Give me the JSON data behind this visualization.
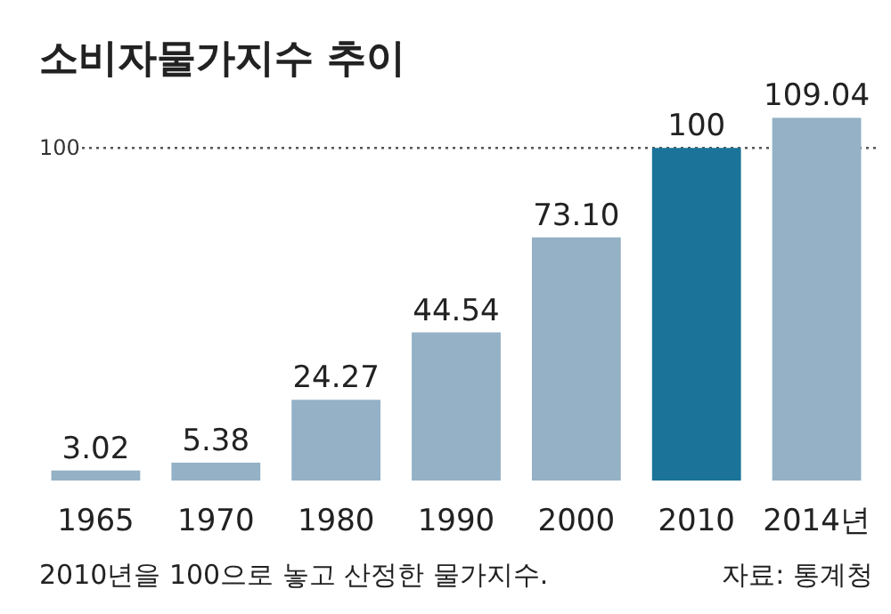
{
  "chart_data": {
    "type": "bar",
    "title": "소비자물가지수 추이",
    "categories": [
      "1965",
      "1970",
      "1980",
      "1990",
      "2000",
      "2010",
      "2014년"
    ],
    "values": [
      3.02,
      5.38,
      24.27,
      44.54,
      73.1,
      100,
      109.04
    ],
    "value_labels": [
      "3.02",
      "5.38",
      "24.27",
      "44.54",
      "73.10",
      "100",
      "109.04"
    ],
    "colors": [
      "#94b1c5",
      "#94b1c5",
      "#94b1c5",
      "#94b1c5",
      "#94b1c5",
      "#1b7399",
      "#94b1c5"
    ],
    "ref_lines": [
      {
        "axis": "y",
        "value": 100,
        "label": "100",
        "line_style": "dotted",
        "color": "#555555"
      }
    ],
    "annotations": [
      "2010년을 100으로 놓고 산정한 물가지수.",
      "자료: 통계청"
    ]
  }
}
